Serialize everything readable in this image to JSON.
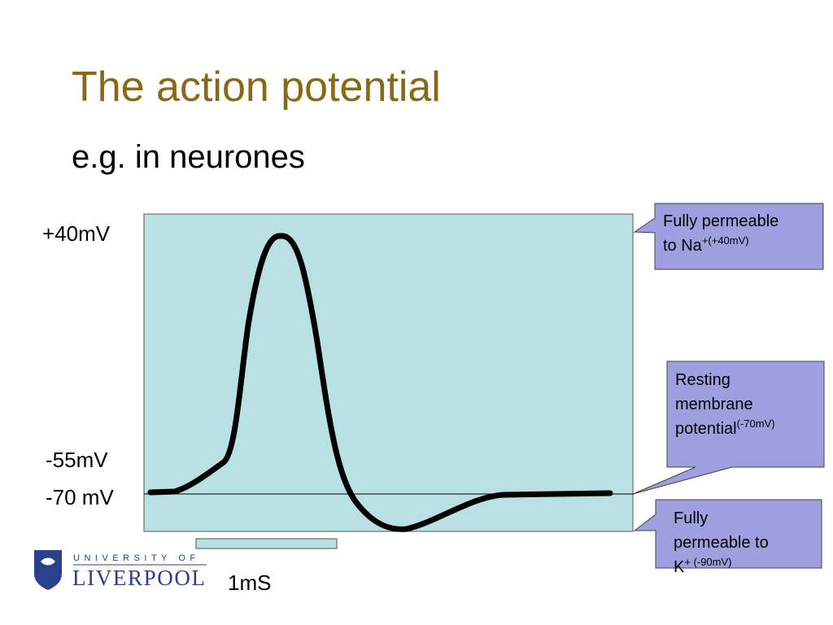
{
  "header": {
    "title": "The action potential",
    "subtitle": "e.g. in neurones"
  },
  "axis_labels": [
    "+40mV",
    "-55mV",
    "-70 mV"
  ],
  "scale_label": "1mS",
  "callouts": [
    {
      "lines": [
        "Fully permeable",
        "to Na"
      ],
      "sup": "+(+40mV)"
    },
    {
      "lines": [
        "Resting",
        "membrane",
        "potential"
      ],
      "sup": "(-70mV)"
    },
    {
      "lines": [
        "Fully",
        "permeable to",
        "K"
      ],
      "sup": "+ (-90mV)"
    }
  ],
  "logo": {
    "top": "UNIVERSITY OF",
    "bottom": "LIVERPOOL"
  }
}
